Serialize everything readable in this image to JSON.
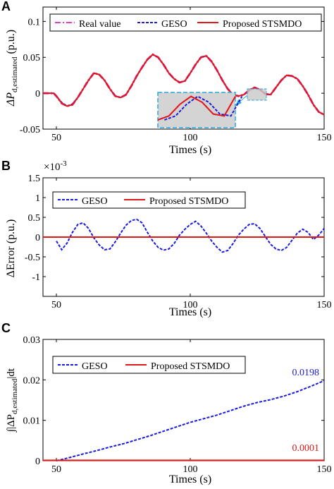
{
  "chart_data": [
    {
      "panel": "A",
      "type": "line",
      "xlabel": "Times (s)",
      "ylabel_main": "ΔP",
      "ylabel_sub": "d,estimated",
      "ylabel_unit": "(p.u.)",
      "xlim": [
        45,
        150
      ],
      "ylim": [
        -0.05,
        0.12
      ],
      "xticks": [
        50,
        100,
        150
      ],
      "yticks": [
        -0.05,
        0,
        0.05,
        0.1
      ],
      "ytick_labels": [
        "-0.05",
        "0",
        "0.05",
        "0.1"
      ],
      "legend_position": "top",
      "x": [
        45,
        49,
        50,
        52,
        54,
        56,
        58,
        60,
        62,
        64,
        66,
        68,
        70,
        72,
        74,
        76,
        78,
        80,
        82,
        84,
        86,
        88,
        90,
        92,
        94,
        96,
        98,
        100,
        102,
        104,
        106,
        108,
        110,
        112,
        114,
        116,
        118,
        120,
        122,
        124,
        126,
        128,
        130,
        132,
        134,
        136,
        138,
        140,
        142,
        144,
        146,
        148,
        150
      ],
      "series": [
        {
          "name": "Real value",
          "color": "#e040c0",
          "style": "dashdot",
          "values": [
            0,
            0,
            -0.004,
            -0.014,
            -0.018,
            -0.016,
            -0.006,
            0.006,
            0.018,
            0.028,
            0.026,
            0.018,
            0.006,
            -0.004,
            -0.006,
            -0.002,
            0.01,
            0.024,
            0.036,
            0.047,
            0.054,
            0.05,
            0.04,
            0.028,
            0.02,
            0.015,
            0.017,
            0.028,
            0.04,
            0.05,
            0.052,
            0.044,
            0.032,
            0.018,
            0.006,
            -0.002,
            -0.004,
            -0.002,
            0.004,
            0.008,
            0.005,
            -0.001,
            -0.002,
            0.008,
            0.018,
            0.025,
            0.024,
            0.02,
            0.01,
            -0.002,
            -0.016,
            -0.026,
            -0.03
          ]
        },
        {
          "name": "GESO",
          "color": "#1a1adc",
          "style": "dashed",
          "values": [
            0,
            0,
            -0.004,
            -0.013,
            -0.018,
            -0.015,
            -0.006,
            0.006,
            0.018,
            0.028,
            0.026,
            0.018,
            0.006,
            -0.004,
            -0.006,
            -0.002,
            0.01,
            0.024,
            0.036,
            0.047,
            0.054,
            0.05,
            0.04,
            0.028,
            0.02,
            0.015,
            0.017,
            0.028,
            0.04,
            0.05,
            0.052,
            0.044,
            0.032,
            0.018,
            0.006,
            -0.002,
            -0.004,
            -0.002,
            0.004,
            0.008,
            0.005,
            -0.001,
            -0.002,
            0.008,
            0.018,
            0.025,
            0.024,
            0.02,
            0.01,
            -0.002,
            -0.016,
            -0.026,
            -0.03
          ]
        },
        {
          "name": "Proposed STSMDO",
          "color": "#e01818",
          "style": "solid",
          "values": [
            0,
            0,
            -0.004,
            -0.014,
            -0.018,
            -0.016,
            -0.006,
            0.006,
            0.018,
            0.028,
            0.026,
            0.018,
            0.006,
            -0.004,
            -0.006,
            -0.002,
            0.01,
            0.024,
            0.036,
            0.047,
            0.054,
            0.05,
            0.04,
            0.028,
            0.02,
            0.015,
            0.017,
            0.028,
            0.04,
            0.05,
            0.052,
            0.044,
            0.032,
            0.018,
            0.006,
            -0.002,
            -0.004,
            -0.002,
            0.004,
            0.008,
            0.005,
            -0.001,
            -0.002,
            0.008,
            0.018,
            0.025,
            0.024,
            0.02,
            0.01,
            -0.002,
            -0.016,
            -0.026,
            -0.03
          ]
        }
      ],
      "zoom_window": {
        "x_range": [
          123,
          128
        ],
        "y_range": [
          -0.006,
          0.002
        ]
      }
    },
    {
      "panel": "B",
      "type": "line",
      "xlabel": "Times (s)",
      "ylabel": "ΔError (p.u.)",
      "scale_label": "×10",
      "scale_exponent": "-3",
      "xlim": [
        45,
        150
      ],
      "ylim": [
        -1.5,
        1.5
      ],
      "xticks": [
        50,
        100,
        150
      ],
      "yticks": [
        -1,
        -0.5,
        0,
        0.5,
        1,
        1.5
      ],
      "ytick_labels": [
        "-1",
        "-0.5",
        "0",
        "0.5",
        "1",
        "1.5"
      ],
      "legend_position": "top",
      "series": [
        {
          "name": "GESO",
          "color": "#1a1adc",
          "style": "dashed",
          "x": [
            50,
            52,
            54,
            56,
            58,
            60,
            62,
            64,
            66,
            68,
            70,
            72,
            74,
            76,
            78,
            80,
            82,
            84,
            86,
            88,
            90,
            92,
            94,
            96,
            98,
            100,
            102,
            104,
            106,
            108,
            110,
            112,
            114,
            116,
            118,
            120,
            122,
            124,
            126,
            128,
            130,
            132,
            134,
            136,
            138,
            140,
            142,
            144,
            146,
            148,
            150
          ],
          "values": [
            -0.1,
            -0.32,
            -0.15,
            0.12,
            0.32,
            0.36,
            0.22,
            -0.02,
            -0.2,
            -0.32,
            -0.3,
            -0.12,
            0.1,
            0.3,
            0.42,
            0.45,
            0.36,
            0.12,
            -0.1,
            -0.26,
            -0.33,
            -0.3,
            -0.16,
            0.05,
            0.2,
            0.32,
            0.4,
            0.28,
            0.1,
            -0.1,
            -0.26,
            -0.38,
            -0.34,
            -0.16,
            0.05,
            0.2,
            0.32,
            0.34,
            0.22,
            0.02,
            -0.18,
            -0.3,
            -0.34,
            -0.26,
            -0.08,
            0.1,
            0.2,
            0.12,
            -0.06,
            0.05,
            0.22
          ]
        },
        {
          "name": "Proposed STSMDO",
          "color": "#e01818",
          "style": "solid",
          "x": [
            45,
            150
          ],
          "values": [
            0,
            0
          ]
        }
      ]
    },
    {
      "panel": "C",
      "type": "line",
      "xlabel": "Times (s)",
      "ylabel_main": "∫|ΔP",
      "ylabel_sub": "d,estimated",
      "ylabel_unit": "|dt",
      "xlim": [
        45,
        150
      ],
      "ylim": [
        0,
        0.03
      ],
      "xticks": [
        50,
        100,
        150
      ],
      "yticks": [
        0,
        0.01,
        0.02,
        0.03
      ],
      "ytick_labels": [
        "0",
        "0.01",
        "0.02",
        "0.03"
      ],
      "legend_position": "top",
      "series": [
        {
          "name": "GESO",
          "color": "#1a1adc",
          "style": "dashed",
          "x": [
            50,
            55,
            60,
            65,
            70,
            75,
            80,
            85,
            90,
            95,
            100,
            105,
            110,
            115,
            120,
            125,
            130,
            135,
            140,
            145,
            150
          ],
          "values": [
            0,
            0.0008,
            0.0017,
            0.0025,
            0.0034,
            0.0042,
            0.0052,
            0.0062,
            0.0073,
            0.0084,
            0.0095,
            0.0104,
            0.0113,
            0.0124,
            0.0135,
            0.0144,
            0.0151,
            0.016,
            0.0171,
            0.0184,
            0.0198
          ],
          "end_label": "0.0198"
        },
        {
          "name": "Proposed STSMDO",
          "color": "#e01818",
          "style": "solid",
          "x": [
            45,
            150
          ],
          "values": [
            0.0001,
            0.0001
          ],
          "end_label": "0.0001"
        }
      ]
    }
  ]
}
